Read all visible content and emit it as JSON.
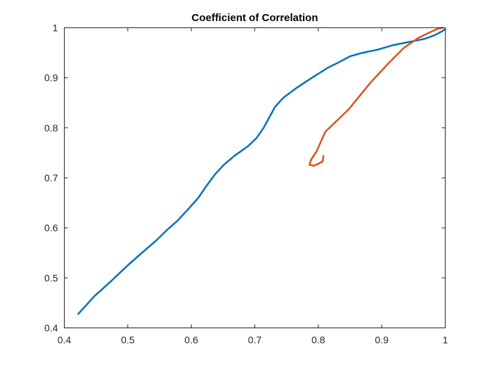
{
  "chart_data": {
    "type": "line",
    "title": "Coefficient of Correlation",
    "xlabel": "",
    "ylabel": "",
    "xlim": [
      0.4,
      1
    ],
    "ylim": [
      0.4,
      1
    ],
    "xticks": [
      "0.4",
      "0.5",
      "0.6",
      "0.7",
      "0.8",
      "0.9",
      "1"
    ],
    "yticks": [
      "0.4",
      "0.5",
      "0.6",
      "0.7",
      "0.8",
      "0.9",
      "1"
    ],
    "grid": false,
    "legend": "none",
    "series": [
      {
        "color": "#0072BD",
        "points": [
          [
            0.422,
            0.428
          ],
          [
            0.447,
            0.463
          ],
          [
            0.475,
            0.495
          ],
          [
            0.5,
            0.525
          ],
          [
            0.525,
            0.553
          ],
          [
            0.545,
            0.575
          ],
          [
            0.562,
            0.596
          ],
          [
            0.578,
            0.614
          ],
          [
            0.595,
            0.637
          ],
          [
            0.611,
            0.66
          ],
          [
            0.624,
            0.684
          ],
          [
            0.638,
            0.708
          ],
          [
            0.652,
            0.727
          ],
          [
            0.668,
            0.744
          ],
          [
            0.69,
            0.764
          ],
          [
            0.703,
            0.78
          ],
          [
            0.714,
            0.8
          ],
          [
            0.732,
            0.842
          ],
          [
            0.745,
            0.86
          ],
          [
            0.766,
            0.88
          ],
          [
            0.79,
            0.9
          ],
          [
            0.815,
            0.92
          ],
          [
            0.831,
            0.93
          ],
          [
            0.85,
            0.943
          ],
          [
            0.87,
            0.95
          ],
          [
            0.893,
            0.956
          ],
          [
            0.917,
            0.965
          ],
          [
            0.945,
            0.972
          ],
          [
            0.968,
            0.978
          ],
          [
            0.983,
            0.985
          ],
          [
            0.995,
            0.993
          ],
          [
            1.0,
            0.997
          ]
        ]
      },
      {
        "color": "#D95319",
        "points": [
          [
            0.808,
            0.744
          ],
          [
            0.807,
            0.733
          ],
          [
            0.8,
            0.728
          ],
          [
            0.793,
            0.724
          ],
          [
            0.786,
            0.726
          ],
          [
            0.789,
            0.737
          ],
          [
            0.797,
            0.752
          ],
          [
            0.811,
            0.792
          ],
          [
            0.848,
            0.837
          ],
          [
            0.882,
            0.89
          ],
          [
            0.909,
            0.927
          ],
          [
            0.935,
            0.96
          ],
          [
            0.958,
            0.98
          ],
          [
            0.976,
            0.991
          ],
          [
            0.988,
            0.998
          ],
          [
            0.996,
            1.0
          ]
        ]
      }
    ]
  }
}
